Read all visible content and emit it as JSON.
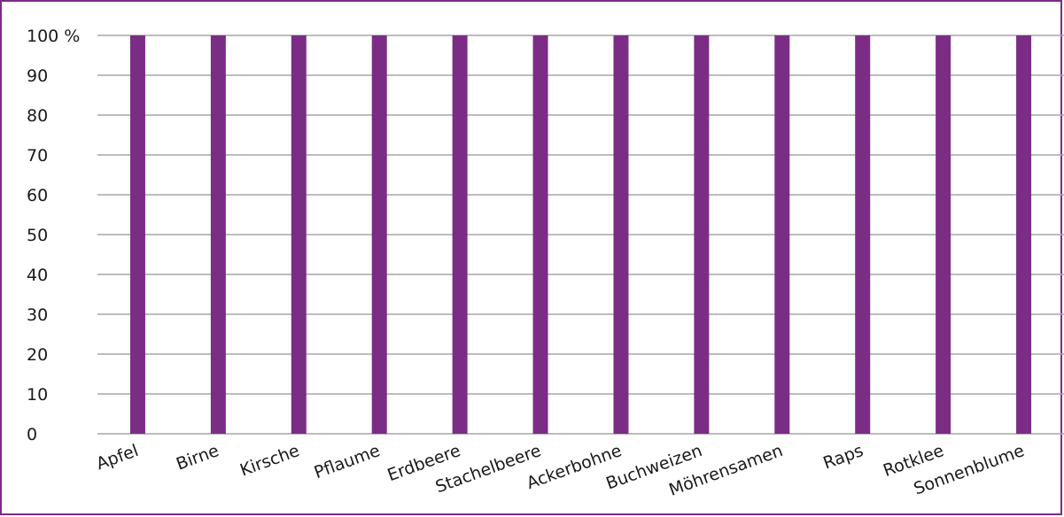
{
  "chart_data": {
    "type": "bar",
    "categories": [
      "Apfel",
      "Birne",
      "Kirsche",
      "Pflaume",
      "Erdbeere",
      "Stachelbeere",
      "Ackerbohne",
      "Buchweizen",
      "Möhrensamen",
      "Raps",
      "Rotklee",
      "Sonnenblume"
    ],
    "values": [
      100,
      100,
      100,
      100,
      100,
      100,
      100,
      100,
      100,
      100,
      100,
      100
    ],
    "ylim": [
      0,
      100
    ],
    "yticks": [
      "0",
      "10",
      "20",
      "30",
      "40",
      "50",
      "60",
      "70",
      "80",
      "90",
      "100 %"
    ],
    "grid": true,
    "bar_color": "#7b2d86",
    "border_color": "#7b2d86"
  }
}
